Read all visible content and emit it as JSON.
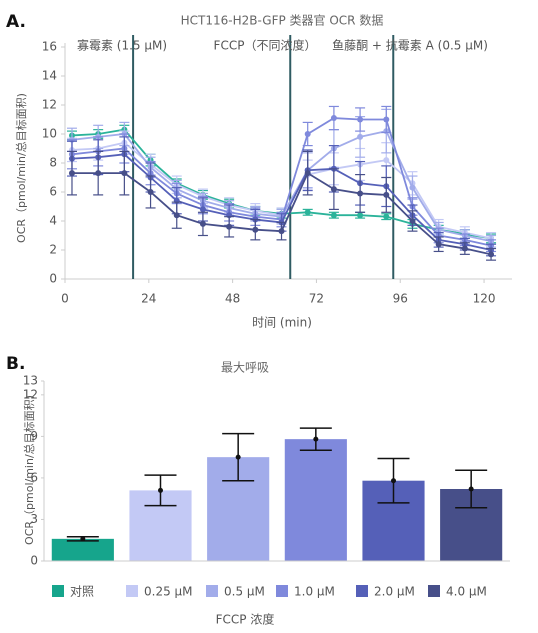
{
  "chart_data": [
    {
      "type": "line",
      "panel_label": "A.",
      "title": "HCT116-H2B-GFP 类器官 OCR 数据",
      "x_label": "时间 (min)",
      "y_label": "OCR（pmol/min/总目标面积)",
      "x": [
        2,
        9.5,
        17,
        24.5,
        32,
        39.5,
        47,
        54.5,
        62,
        69.5,
        77,
        84.5,
        92,
        99.5,
        107,
        114.5,
        122
      ],
      "series": [
        {
          "color": "#2bb39a",
          "values": [
            9.9,
            10.0,
            10.3,
            8.2,
            6.6,
            5.8,
            5.2,
            4.7,
            4.5,
            4.6,
            4.4,
            4.4,
            4.3,
            3.8,
            3.4,
            3.1,
            2.8
          ],
          "errors": [
            0.3,
            0.3,
            0.3,
            0.4,
            0.3,
            0.3,
            0.3,
            0.3,
            0.3,
            0.2,
            0.2,
            0.2,
            0.2,
            0.3,
            0.3,
            0.3,
            0.3
          ]
        },
        {
          "color": "#c3c9f5",
          "values": [
            8.9,
            9.0,
            9.4,
            7.9,
            6.5,
            5.7,
            5.1,
            4.7,
            4.4,
            7.2,
            7.6,
            7.9,
            8.2,
            6.6,
            3.6,
            3.2,
            2.8
          ],
          "errors": [
            0.8,
            0.8,
            0.8,
            0.7,
            0.6,
            0.5,
            0.5,
            0.5,
            0.5,
            1.0,
            1.1,
            1.1,
            1.2,
            0.8,
            0.5,
            0.4,
            0.4
          ]
        },
        {
          "color": "#a2acea",
          "values": [
            9.6,
            9.8,
            10.0,
            7.7,
            6.2,
            5.4,
            4.9,
            4.5,
            4.3,
            7.5,
            9.0,
            9.8,
            10.2,
            6.3,
            3.4,
            3.0,
            2.6
          ],
          "errors": [
            0.8,
            0.8,
            0.8,
            0.7,
            0.6,
            0.5,
            0.5,
            0.5,
            0.5,
            1.2,
            1.3,
            1.4,
            1.5,
            0.8,
            0.5,
            0.4,
            0.4
          ]
        },
        {
          "color": "#7f89dc",
          "values": [
            8.6,
            8.8,
            9.0,
            7.3,
            5.9,
            5.1,
            4.6,
            4.3,
            4.1,
            10.0,
            11.1,
            11.0,
            11.0,
            5.0,
            3.0,
            2.7,
            2.3
          ],
          "errors": [
            1.0,
            1.0,
            1.0,
            0.8,
            0.7,
            0.6,
            0.6,
            0.6,
            0.5,
            0.8,
            0.8,
            0.8,
            0.9,
            0.6,
            0.5,
            0.4,
            0.4
          ]
        },
        {
          "color": "#5560b8",
          "values": [
            8.3,
            8.4,
            8.6,
            7.0,
            5.4,
            4.8,
            4.4,
            4.1,
            3.9,
            7.5,
            7.6,
            6.6,
            6.4,
            4.4,
            2.7,
            2.4,
            2.0
          ],
          "errors": [
            1.2,
            1.2,
            1.2,
            1.0,
            0.9,
            0.8,
            0.7,
            0.7,
            0.6,
            1.4,
            1.6,
            1.5,
            1.4,
            0.7,
            0.5,
            0.4,
            0.4
          ]
        },
        {
          "color": "#474f89",
          "values": [
            7.3,
            7.3,
            7.3,
            6.0,
            4.4,
            3.8,
            3.6,
            3.4,
            3.3,
            7.3,
            6.2,
            5.9,
            5.8,
            4.0,
            2.4,
            2.1,
            1.7
          ],
          "errors": [
            1.5,
            1.5,
            1.5,
            1.1,
            0.9,
            0.8,
            0.7,
            0.7,
            0.6,
            1.5,
            1.4,
            1.3,
            1.2,
            0.7,
            0.5,
            0.4,
            0.4
          ]
        }
      ],
      "injections": [
        {
          "x": 19.5,
          "label": "寡霉素 (1.5 μM)"
        },
        {
          "x": 64.5,
          "label": "FCCP（不同浓度）"
        },
        {
          "x": 94,
          "label": "鱼藤酮 + 抗霉素 A (0.5 μM)"
        }
      ],
      "xlim": [
        0,
        128
      ],
      "xticks": [
        0,
        24,
        48,
        72,
        96,
        120
      ],
      "ylim": [
        0,
        16
      ],
      "yticks": [
        0,
        2,
        4,
        6,
        8,
        10,
        12,
        14,
        16
      ]
    },
    {
      "type": "bar",
      "panel_label": "B.",
      "title": "最大呼吸",
      "x_label": "FCCP 浓度",
      "y_label": "OCR（pmol/min/总目标面积)",
      "categories": [
        "对照",
        "0.25 μM",
        "0.5 μM",
        "1.0 μM",
        "2.0 μM",
        "4.0 μM"
      ],
      "colors": [
        "#16a58c",
        "#c3c9f5",
        "#a2acea",
        "#7f89dc",
        "#5560b8",
        "#474f89"
      ],
      "values": [
        1.6,
        5.1,
        7.5,
        8.8,
        5.8,
        5.2
      ],
      "errors": [
        0.15,
        1.1,
        1.7,
        0.8,
        1.6,
        1.35
      ],
      "ylim": [
        0,
        13
      ],
      "yticks": [
        0,
        3,
        6,
        9,
        12,
        13
      ]
    }
  ]
}
